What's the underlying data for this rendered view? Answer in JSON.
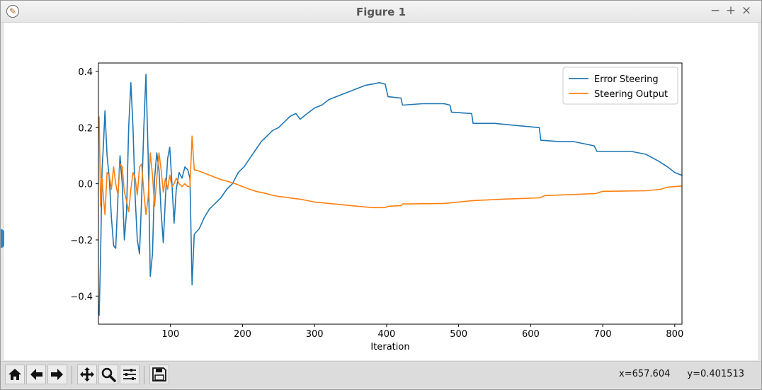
{
  "window": {
    "title": "Figure 1",
    "controls": {
      "minimize": "−",
      "maximize": "+",
      "close": "×"
    }
  },
  "toolbar": {
    "buttons": [
      "home-icon",
      "back-arrow-icon",
      "forward-arrow-icon",
      "pan-icon",
      "zoom-icon",
      "subplots-config-icon",
      "save-icon"
    ],
    "coords": {
      "x": "x=657.604",
      "y": "y=0.401513"
    }
  },
  "colors": {
    "series1": "#1f77b4",
    "series2": "#ff7f0e"
  },
  "chart_data": {
    "type": "line",
    "title": "",
    "xlabel": "Iteration",
    "ylabel": "",
    "xlim": [
      0,
      810
    ],
    "ylim": [
      -0.5,
      0.43
    ],
    "xticks": [
      100,
      200,
      300,
      400,
      500,
      600,
      700,
      800
    ],
    "xtick_labels": [
      "100",
      "200",
      "300",
      "400",
      "500",
      "600",
      "700",
      "800"
    ],
    "yticks": [
      0.4,
      0.2,
      0.0,
      -0.2,
      -0.4
    ],
    "ytick_labels": [
      "0.4",
      "0.2",
      "0.0",
      "−0.2",
      "−0.4"
    ],
    "grid": false,
    "legend_position": "top-right",
    "series": [
      {
        "name": "Error Steering",
        "color": "#1f77b4",
        "points": [
          [
            1,
            -0.47
          ],
          [
            3,
            -0.25
          ],
          [
            5,
            0.05
          ],
          [
            7,
            0.14
          ],
          [
            9,
            0.26
          ],
          [
            12,
            0.1
          ],
          [
            15,
            0.02
          ],
          [
            18,
            -0.12
          ],
          [
            21,
            -0.22
          ],
          [
            24,
            -0.23
          ],
          [
            27,
            -0.05
          ],
          [
            30,
            0.1
          ],
          [
            33,
            0.0
          ],
          [
            36,
            -0.2
          ],
          [
            39,
            -0.1
          ],
          [
            42,
            0.2
          ],
          [
            45,
            0.36
          ],
          [
            48,
            0.2
          ],
          [
            51,
            -0.05
          ],
          [
            54,
            -0.2
          ],
          [
            57,
            -0.25
          ],
          [
            60,
            -0.05
          ],
          [
            63,
            0.2
          ],
          [
            66,
            0.39
          ],
          [
            69,
            0.1
          ],
          [
            72,
            -0.33
          ],
          [
            75,
            -0.25
          ],
          [
            78,
            0.02
          ],
          [
            81,
            0.11
          ],
          [
            84,
            0.05
          ],
          [
            87,
            -0.1
          ],
          [
            90,
            -0.21
          ],
          [
            93,
            -0.05
          ],
          [
            96,
            0.09
          ],
          [
            99,
            0.13
          ],
          [
            102,
            0.0
          ],
          [
            105,
            -0.14
          ],
          [
            108,
            -0.02
          ],
          [
            112,
            0.04
          ],
          [
            116,
            0.02
          ],
          [
            120,
            0.06
          ],
          [
            124,
            0.05
          ],
          [
            127,
            0.02
          ],
          [
            130,
            -0.36
          ],
          [
            133,
            -0.18
          ],
          [
            140,
            -0.16
          ],
          [
            147,
            -0.12
          ],
          [
            154,
            -0.09
          ],
          [
            162,
            -0.07
          ],
          [
            170,
            -0.05
          ],
          [
            178,
            -0.02
          ],
          [
            186,
            0.0
          ],
          [
            194,
            0.04
          ],
          [
            202,
            0.06
          ],
          [
            210,
            0.09
          ],
          [
            218,
            0.12
          ],
          [
            226,
            0.15
          ],
          [
            234,
            0.17
          ],
          [
            242,
            0.19
          ],
          [
            250,
            0.2
          ],
          [
            258,
            0.22
          ],
          [
            266,
            0.24
          ],
          [
            274,
            0.25
          ],
          [
            280,
            0.23
          ],
          [
            290,
            0.25
          ],
          [
            300,
            0.27
          ],
          [
            310,
            0.28
          ],
          [
            320,
            0.3
          ],
          [
            330,
            0.31
          ],
          [
            340,
            0.32
          ],
          [
            350,
            0.33
          ],
          [
            360,
            0.34
          ],
          [
            370,
            0.35
          ],
          [
            380,
            0.355
          ],
          [
            390,
            0.36
          ],
          [
            398,
            0.355
          ],
          [
            402,
            0.31
          ],
          [
            420,
            0.305
          ],
          [
            422,
            0.28
          ],
          [
            450,
            0.285
          ],
          [
            480,
            0.285
          ],
          [
            488,
            0.28
          ],
          [
            490,
            0.255
          ],
          [
            518,
            0.25
          ],
          [
            520,
            0.215
          ],
          [
            550,
            0.215
          ],
          [
            570,
            0.21
          ],
          [
            612,
            0.2
          ],
          [
            614,
            0.155
          ],
          [
            640,
            0.15
          ],
          [
            660,
            0.15
          ],
          [
            688,
            0.135
          ],
          [
            692,
            0.115
          ],
          [
            740,
            0.115
          ],
          [
            760,
            0.105
          ],
          [
            778,
            0.08
          ],
          [
            790,
            0.06
          ],
          [
            800,
            0.04
          ],
          [
            810,
            0.03
          ]
        ]
      },
      {
        "name": "Steering Output",
        "color": "#ff7f0e",
        "points": [
          [
            1,
            0.24
          ],
          [
            3,
            -0.08
          ],
          [
            5,
            0.02
          ],
          [
            7,
            -0.05
          ],
          [
            9,
            -0.11
          ],
          [
            12,
            0.04
          ],
          [
            15,
            0.03
          ],
          [
            18,
            -0.02
          ],
          [
            21,
            0.06
          ],
          [
            24,
            0.0
          ],
          [
            27,
            -0.04
          ],
          [
            30,
            0.07
          ],
          [
            33,
            0.06
          ],
          [
            36,
            -0.03
          ],
          [
            39,
            -0.06
          ],
          [
            42,
            -0.1
          ],
          [
            45,
            -0.02
          ],
          [
            48,
            0.04
          ],
          [
            51,
            0.02
          ],
          [
            54,
            -0.04
          ],
          [
            57,
            0.06
          ],
          [
            60,
            0.07
          ],
          [
            63,
            -0.03
          ],
          [
            66,
            -0.11
          ],
          [
            69,
            -0.05
          ],
          [
            72,
            0.11
          ],
          [
            75,
            0.03
          ],
          [
            78,
            -0.08
          ],
          [
            81,
            0.02
          ],
          [
            84,
            0.11
          ],
          [
            87,
            0.05
          ],
          [
            90,
            -0.03
          ],
          [
            93,
            0.02
          ],
          [
            96,
            -0.02
          ],
          [
            99,
            0.03
          ],
          [
            102,
            -0.01
          ],
          [
            105,
            0.0
          ],
          [
            108,
            0.02
          ],
          [
            112,
            0.0
          ],
          [
            116,
            -0.01
          ],
          [
            120,
            0.0
          ],
          [
            124,
            -0.01
          ],
          [
            127,
            -0.01
          ],
          [
            130,
            0.17
          ],
          [
            133,
            0.05
          ],
          [
            140,
            0.045
          ],
          [
            150,
            0.035
          ],
          [
            160,
            0.025
          ],
          [
            170,
            0.015
          ],
          [
            180,
            0.008
          ],
          [
            190,
            0.0
          ],
          [
            200,
            -0.01
          ],
          [
            210,
            -0.02
          ],
          [
            220,
            -0.028
          ],
          [
            230,
            -0.033
          ],
          [
            240,
            -0.04
          ],
          [
            250,
            -0.045
          ],
          [
            260,
            -0.048
          ],
          [
            270,
            -0.052
          ],
          [
            280,
            -0.055
          ],
          [
            290,
            -0.06
          ],
          [
            300,
            -0.065
          ],
          [
            320,
            -0.07
          ],
          [
            340,
            -0.075
          ],
          [
            360,
            -0.08
          ],
          [
            380,
            -0.085
          ],
          [
            398,
            -0.085
          ],
          [
            402,
            -0.08
          ],
          [
            420,
            -0.078
          ],
          [
            422,
            -0.072
          ],
          [
            480,
            -0.07
          ],
          [
            520,
            -0.06
          ],
          [
            560,
            -0.055
          ],
          [
            612,
            -0.05
          ],
          [
            620,
            -0.042
          ],
          [
            690,
            -0.035
          ],
          [
            700,
            -0.027
          ],
          [
            760,
            -0.025
          ],
          [
            780,
            -0.02
          ],
          [
            790,
            -0.012
          ],
          [
            810,
            -0.008
          ]
        ]
      }
    ]
  }
}
